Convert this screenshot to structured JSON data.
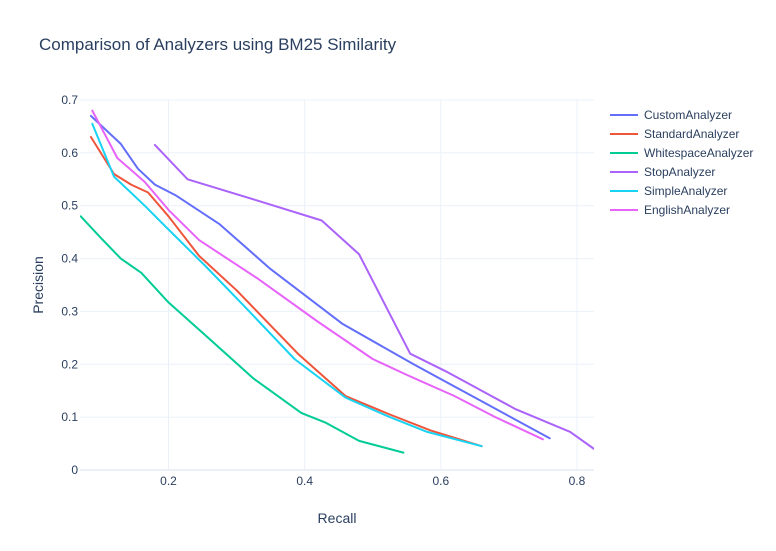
{
  "chart_data": {
    "type": "line",
    "title": "Comparison of Analyzers using BM25 Similarity",
    "xlabel": "Recall",
    "ylabel": "Precision",
    "xlim": [
      0.07,
      0.825
    ],
    "ylim": [
      0,
      0.7
    ],
    "xticks": [
      0.2,
      0.4,
      0.6,
      0.8
    ],
    "xtick_labels": [
      "0.2",
      "0.4",
      "0.6",
      "0.8"
    ],
    "yticks": [
      0,
      0.1,
      0.2,
      0.3,
      0.4,
      0.5,
      0.6,
      0.7
    ],
    "ytick_labels": [
      "0",
      "0.1",
      "0.2",
      "0.3",
      "0.4",
      "0.5",
      "0.6",
      "0.7"
    ],
    "grid": true,
    "legend_position": "top-right",
    "series": [
      {
        "name": "CustomAnalyzer",
        "color": "#636efa",
        "x": [
          0.086,
          0.13,
          0.155,
          0.18,
          0.21,
          0.275,
          0.35,
          0.455,
          0.56,
          0.66,
          0.76
        ],
        "y": [
          0.67,
          0.617,
          0.57,
          0.54,
          0.52,
          0.465,
          0.38,
          0.277,
          0.2,
          0.13,
          0.06
        ]
      },
      {
        "name": "StandardAnalyzer",
        "color": "#ef553b",
        "x": [
          0.086,
          0.12,
          0.145,
          0.17,
          0.2,
          0.245,
          0.3,
          0.39,
          0.46,
          0.525,
          0.585,
          0.66
        ],
        "y": [
          0.63,
          0.56,
          0.54,
          0.525,
          0.48,
          0.405,
          0.34,
          0.22,
          0.14,
          0.105,
          0.075,
          0.045
        ]
      },
      {
        "name": "WhitespaceAnalyzer",
        "color": "#00cc96",
        "x": [
          0.071,
          0.1,
          0.13,
          0.16,
          0.2,
          0.26,
          0.325,
          0.395,
          0.43,
          0.48,
          0.545
        ],
        "y": [
          0.48,
          0.44,
          0.4,
          0.373,
          0.317,
          0.248,
          0.173,
          0.108,
          0.09,
          0.055,
          0.033
        ]
      },
      {
        "name": "StopAnalyzer",
        "color": "#ab63fa",
        "x": [
          0.18,
          0.228,
          0.33,
          0.425,
          0.48,
          0.555,
          0.61,
          0.66,
          0.71,
          0.79,
          0.825
        ],
        "y": [
          0.615,
          0.55,
          0.51,
          0.472,
          0.408,
          0.22,
          0.185,
          0.15,
          0.115,
          0.072,
          0.04
        ]
      },
      {
        "name": "SimpleAnalyzer",
        "color": "#19d3f3",
        "x": [
          0.088,
          0.12,
          0.165,
          0.2,
          0.255,
          0.315,
          0.385,
          0.46,
          0.525,
          0.58,
          0.66
        ],
        "y": [
          0.655,
          0.555,
          0.5,
          0.455,
          0.385,
          0.305,
          0.21,
          0.137,
          0.1,
          0.072,
          0.045
        ]
      },
      {
        "name": "EnglishAnalyzer",
        "color": "#e763fa",
        "x": [
          0.088,
          0.125,
          0.165,
          0.2,
          0.245,
          0.33,
          0.42,
          0.5,
          0.55,
          0.62,
          0.68,
          0.75
        ],
        "y": [
          0.68,
          0.59,
          0.545,
          0.492,
          0.435,
          0.363,
          0.28,
          0.21,
          0.18,
          0.14,
          0.1,
          0.058
        ]
      }
    ]
  }
}
